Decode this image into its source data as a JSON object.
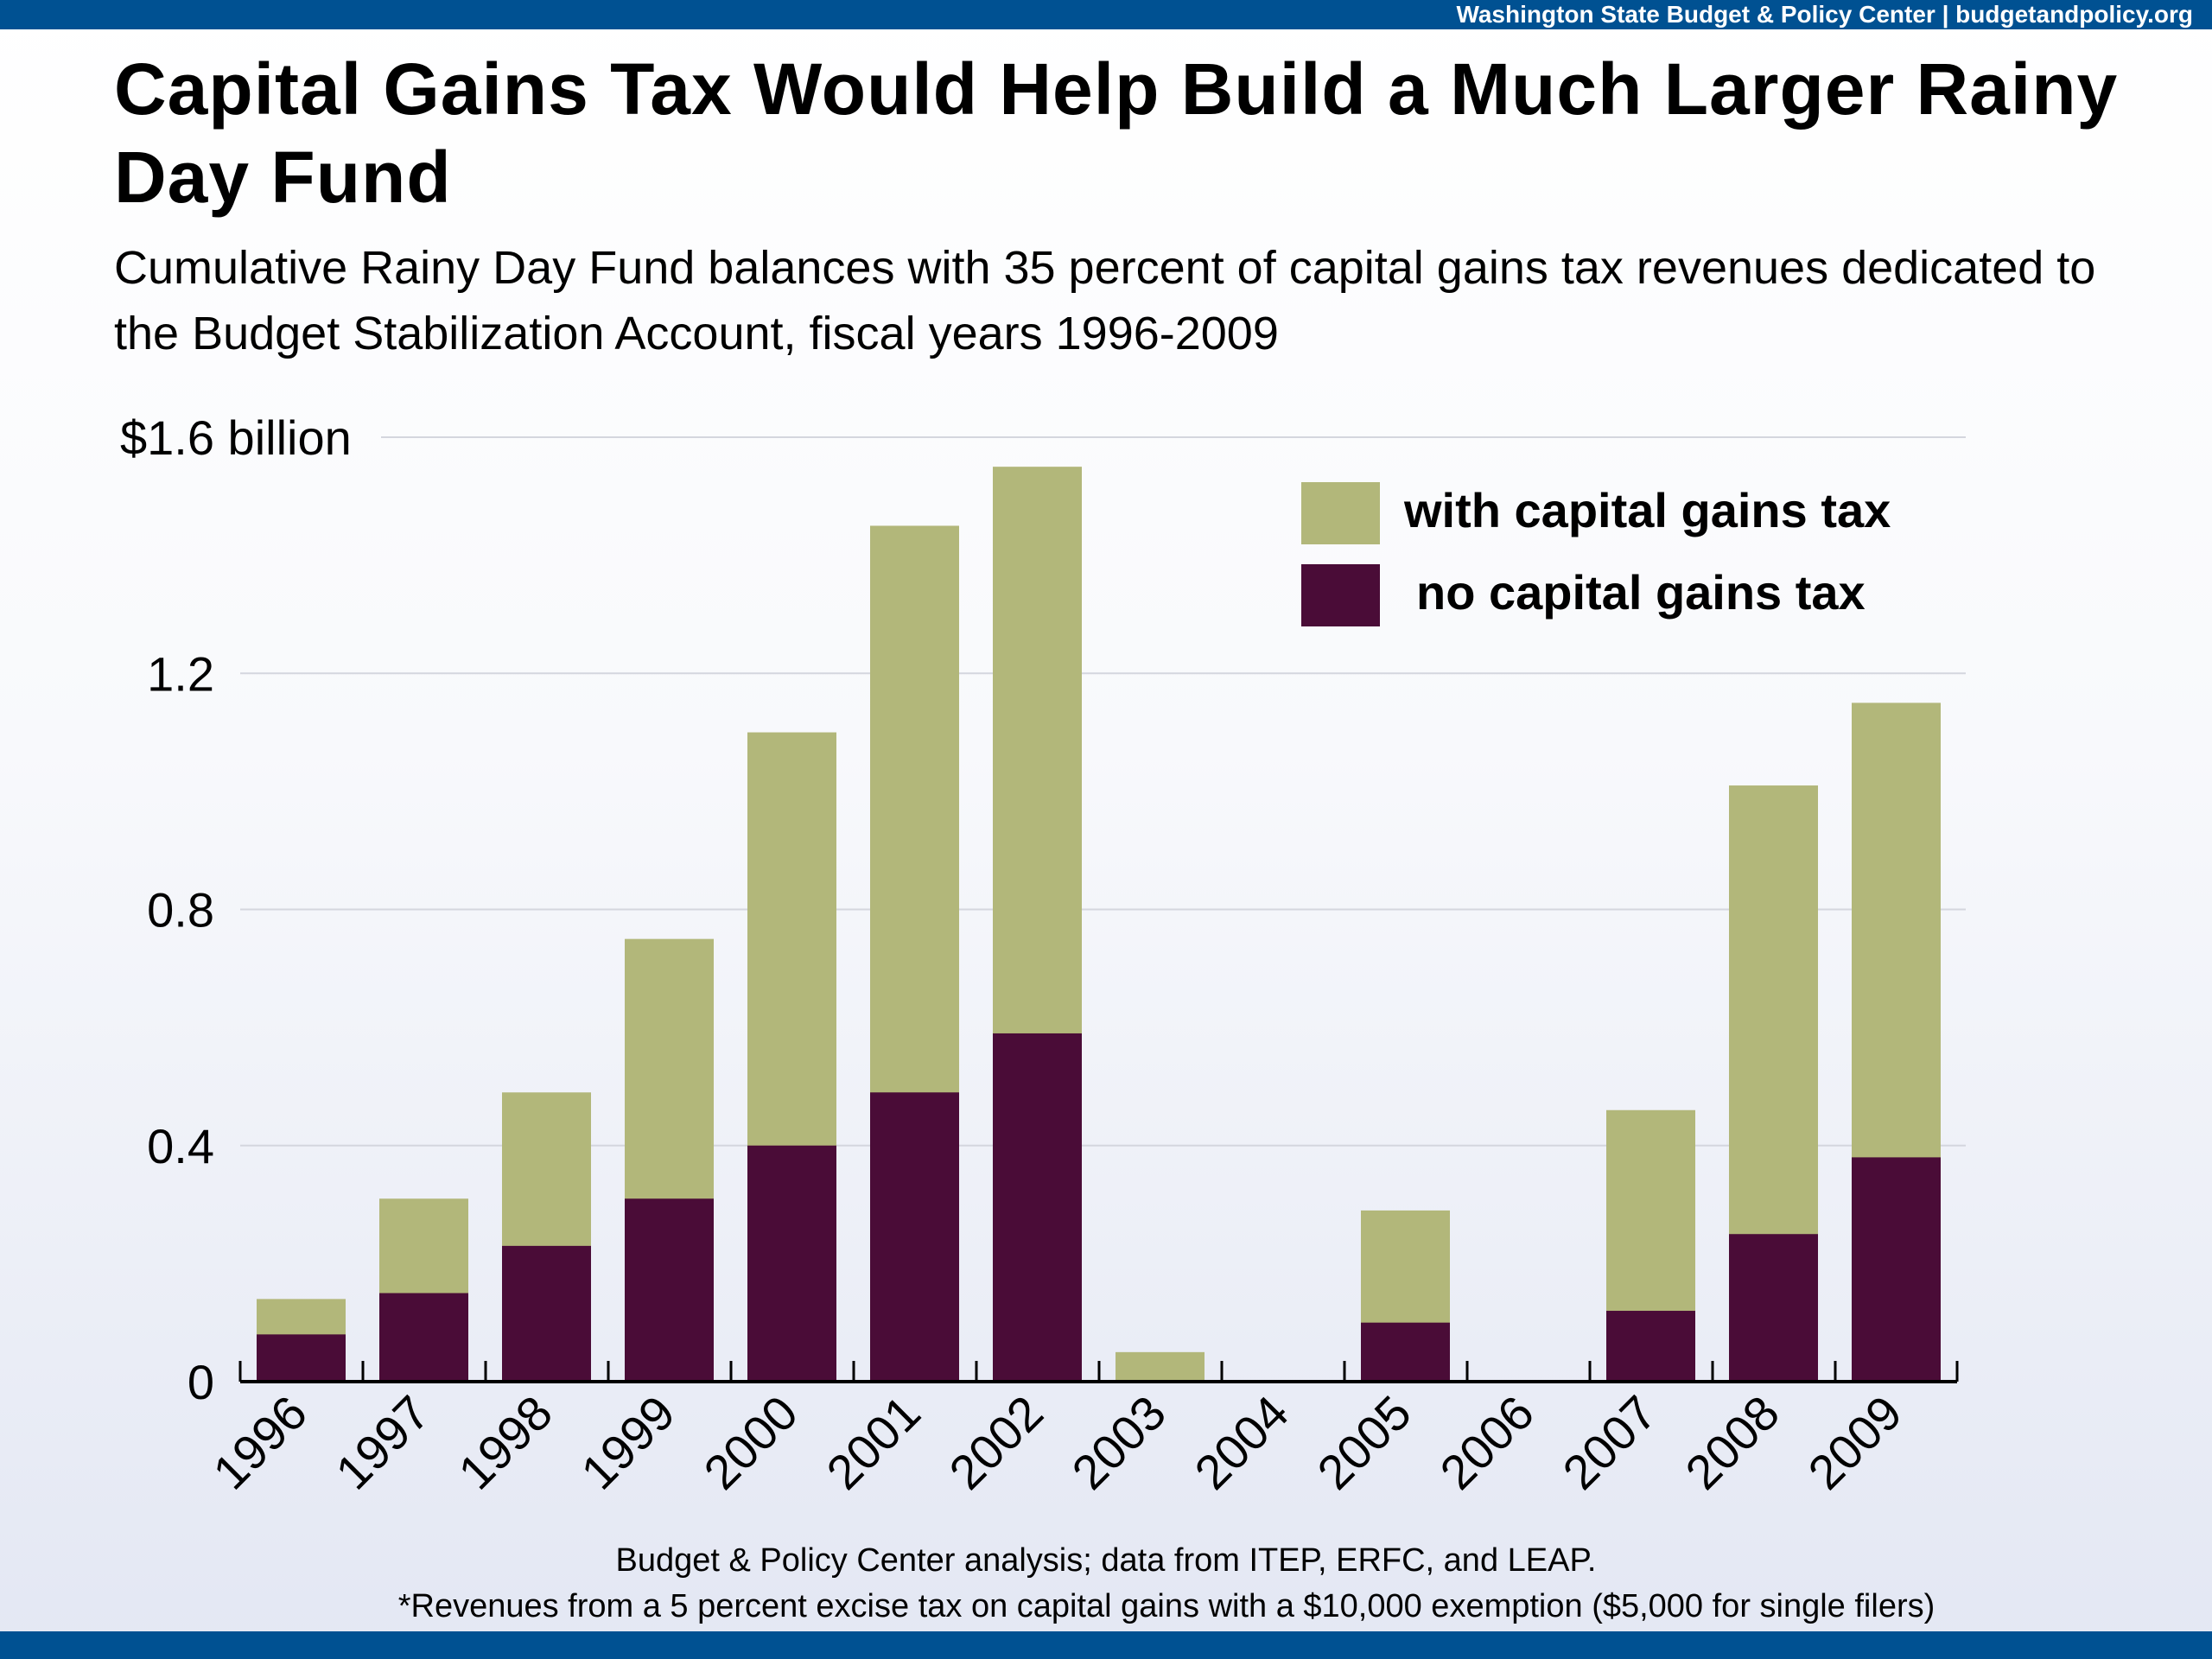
{
  "header": {
    "org": "Washington State Budget & Policy Center | budgetandpolicy.org"
  },
  "title": "Capital Gains Tax Would Help Build a Much Larger Rainy Day Fund",
  "subtitle": "Cumulative Rainy Day Fund balances with 35 percent of capital gains tax revenues dedicated to the Budget Stabilization Account, fiscal years 1996-2009",
  "footer": {
    "source": "Budget & Policy Center analysis; data from ITEP, ERFC, and LEAP.",
    "note": "*Revenues from a 5 percent excise tax on capital gains with a $10,000 exemption ($5,000 for single filers)"
  },
  "chart_data": {
    "type": "bar",
    "stacked": "overlay",
    "categories": [
      "1996",
      "1997",
      "1998",
      "1999",
      "2000",
      "2001",
      "2002",
      "2003",
      "2004",
      "2005",
      "2006",
      "2007",
      "2008",
      "2009"
    ],
    "series": [
      {
        "name": "with capital gains tax",
        "color": "#b2b77a",
        "values": [
          0.14,
          0.31,
          0.49,
          0.75,
          1.1,
          1.45,
          1.55,
          0.05,
          0,
          0.29,
          0,
          0.46,
          1.01,
          1.15
        ]
      },
      {
        "name": "no capital gains tax",
        "color": "#4a0c37",
        "values": [
          0.08,
          0.15,
          0.23,
          0.31,
          0.4,
          0.49,
          0.59,
          0,
          0,
          0.1,
          0,
          0.12,
          0.25,
          0.38
        ]
      }
    ],
    "ylim": [
      0,
      1.6
    ],
    "yticks": [
      0,
      0.4,
      0.8,
      1.2,
      1.6
    ],
    "ytick_labels": [
      "0",
      "0.4",
      "0.8",
      "1.2",
      "$1.6 billion"
    ],
    "grid": true,
    "legend": "top-right"
  }
}
